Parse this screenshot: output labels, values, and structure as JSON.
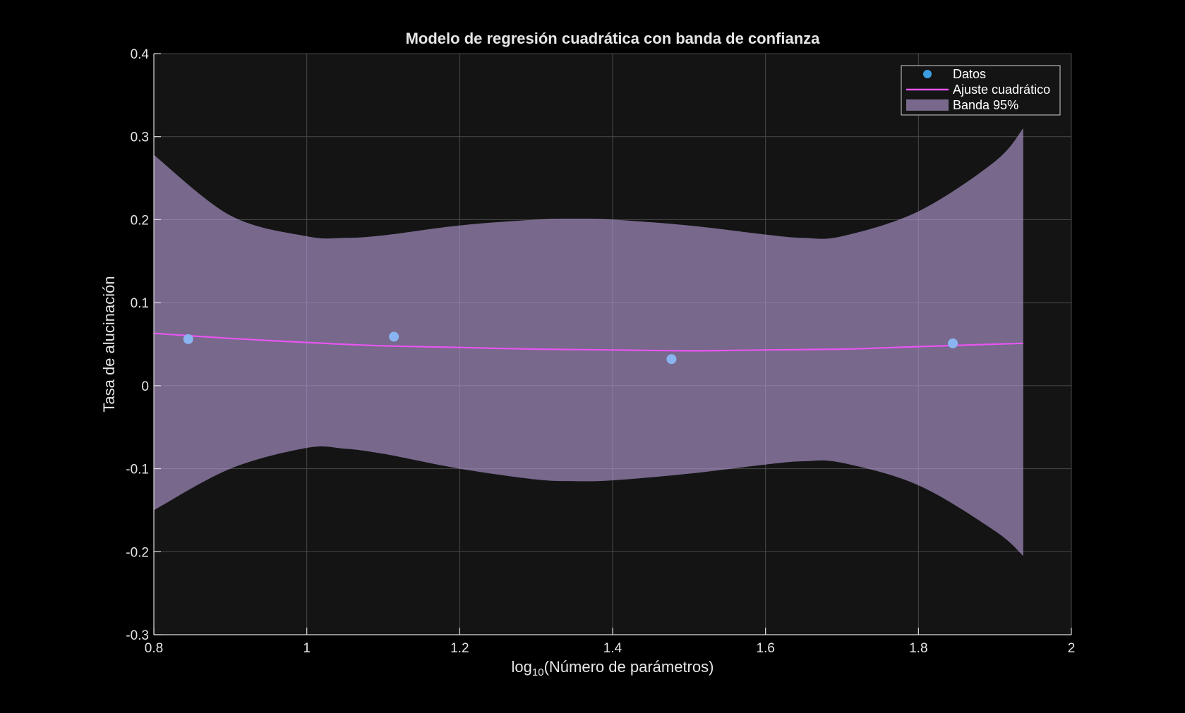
{
  "chart_data": {
    "type": "scatter",
    "title": "Modelo de regresión cuadrática con banda de confianza",
    "xlabel": {
      "prefix": "log",
      "subscript": "10",
      "rest": "(Número  de  parámetros)"
    },
    "ylabel": "Tasa de alucinación",
    "xlim": [
      0.8,
      2.0
    ],
    "ylim": [
      -0.3,
      0.4
    ],
    "xticks": [
      "0.8",
      "1",
      "1.2",
      "1.4",
      "1.6",
      "1.8",
      "2"
    ],
    "yticks": [
      "-0.3",
      "-0.2",
      "-0.1",
      "0",
      "0.1",
      "0.2",
      "0.3",
      "0.4"
    ],
    "grid": true,
    "legend_position": "top-right",
    "series": [
      {
        "name": "Datos",
        "kind": "points",
        "color": "#8ab4f0",
        "legend_color": "#3a9ee0",
        "x": [
          0.845,
          1.114,
          1.477,
          1.845
        ],
        "y": [
          0.056,
          0.059,
          0.032,
          0.051
        ]
      },
      {
        "name": "Ajuste cuadrático",
        "kind": "line",
        "color": "#e855f0",
        "x": [
          0.8,
          0.9,
          1.0,
          1.1,
          1.2,
          1.3,
          1.4,
          1.5,
          1.6,
          1.7,
          1.8,
          1.9,
          1.937
        ],
        "y": [
          0.063,
          0.057,
          0.052,
          0.048,
          0.046,
          0.044,
          0.043,
          0.042,
          0.043,
          0.044,
          0.047,
          0.05,
          0.051
        ]
      },
      {
        "name": "Banda 95%",
        "kind": "band",
        "color": "#b49cd6",
        "x": [
          0.8,
          0.9,
          1.0,
          1.05,
          1.1,
          1.2,
          1.3,
          1.35,
          1.4,
          1.5,
          1.6,
          1.65,
          1.7,
          1.8,
          1.9,
          1.937
        ],
        "upper": [
          0.278,
          0.205,
          0.18,
          0.178,
          0.181,
          0.193,
          0.2,
          0.201,
          0.2,
          0.193,
          0.182,
          0.178,
          0.18,
          0.21,
          0.27,
          0.31
        ],
        "lower": [
          -0.15,
          -0.1,
          -0.075,
          -0.076,
          -0.082,
          -0.1,
          -0.113,
          -0.115,
          -0.114,
          -0.106,
          -0.095,
          -0.091,
          -0.093,
          -0.12,
          -0.175,
          -0.205
        ]
      }
    ]
  }
}
